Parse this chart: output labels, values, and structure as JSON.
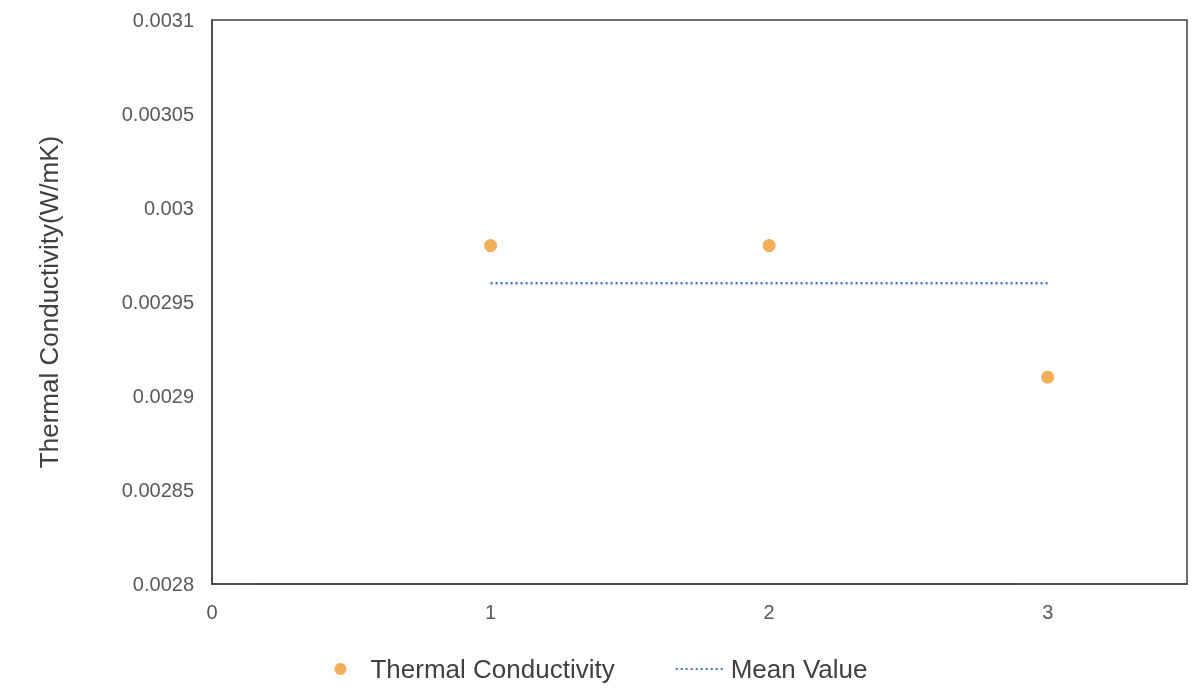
{
  "chart_data": {
    "type": "scatter",
    "ylabel": "Thermal Conductivity(W/mK)",
    "xlim": [
      0,
      3.5
    ],
    "xticks": [
      0,
      1,
      2,
      3
    ],
    "ylim": [
      0.0028,
      0.0031
    ],
    "yticks": [
      0.0028,
      0.00285,
      0.0029,
      0.00295,
      0.003,
      0.00305,
      0.0031
    ],
    "grid": false,
    "legend": "bottom",
    "series": [
      {
        "name": "Thermal Conductivity",
        "marker": "circle",
        "color": "#f09a30",
        "x": [
          1,
          2,
          3
        ],
        "values": [
          0.00298,
          0.00298,
          0.00291
        ]
      },
      {
        "name": "Mean Value",
        "type": "line",
        "marker": "none",
        "line_style": "dotted",
        "color": "#4472c4",
        "x": [
          1,
          3
        ],
        "values": [
          0.00296,
          0.00296
        ]
      }
    ]
  }
}
